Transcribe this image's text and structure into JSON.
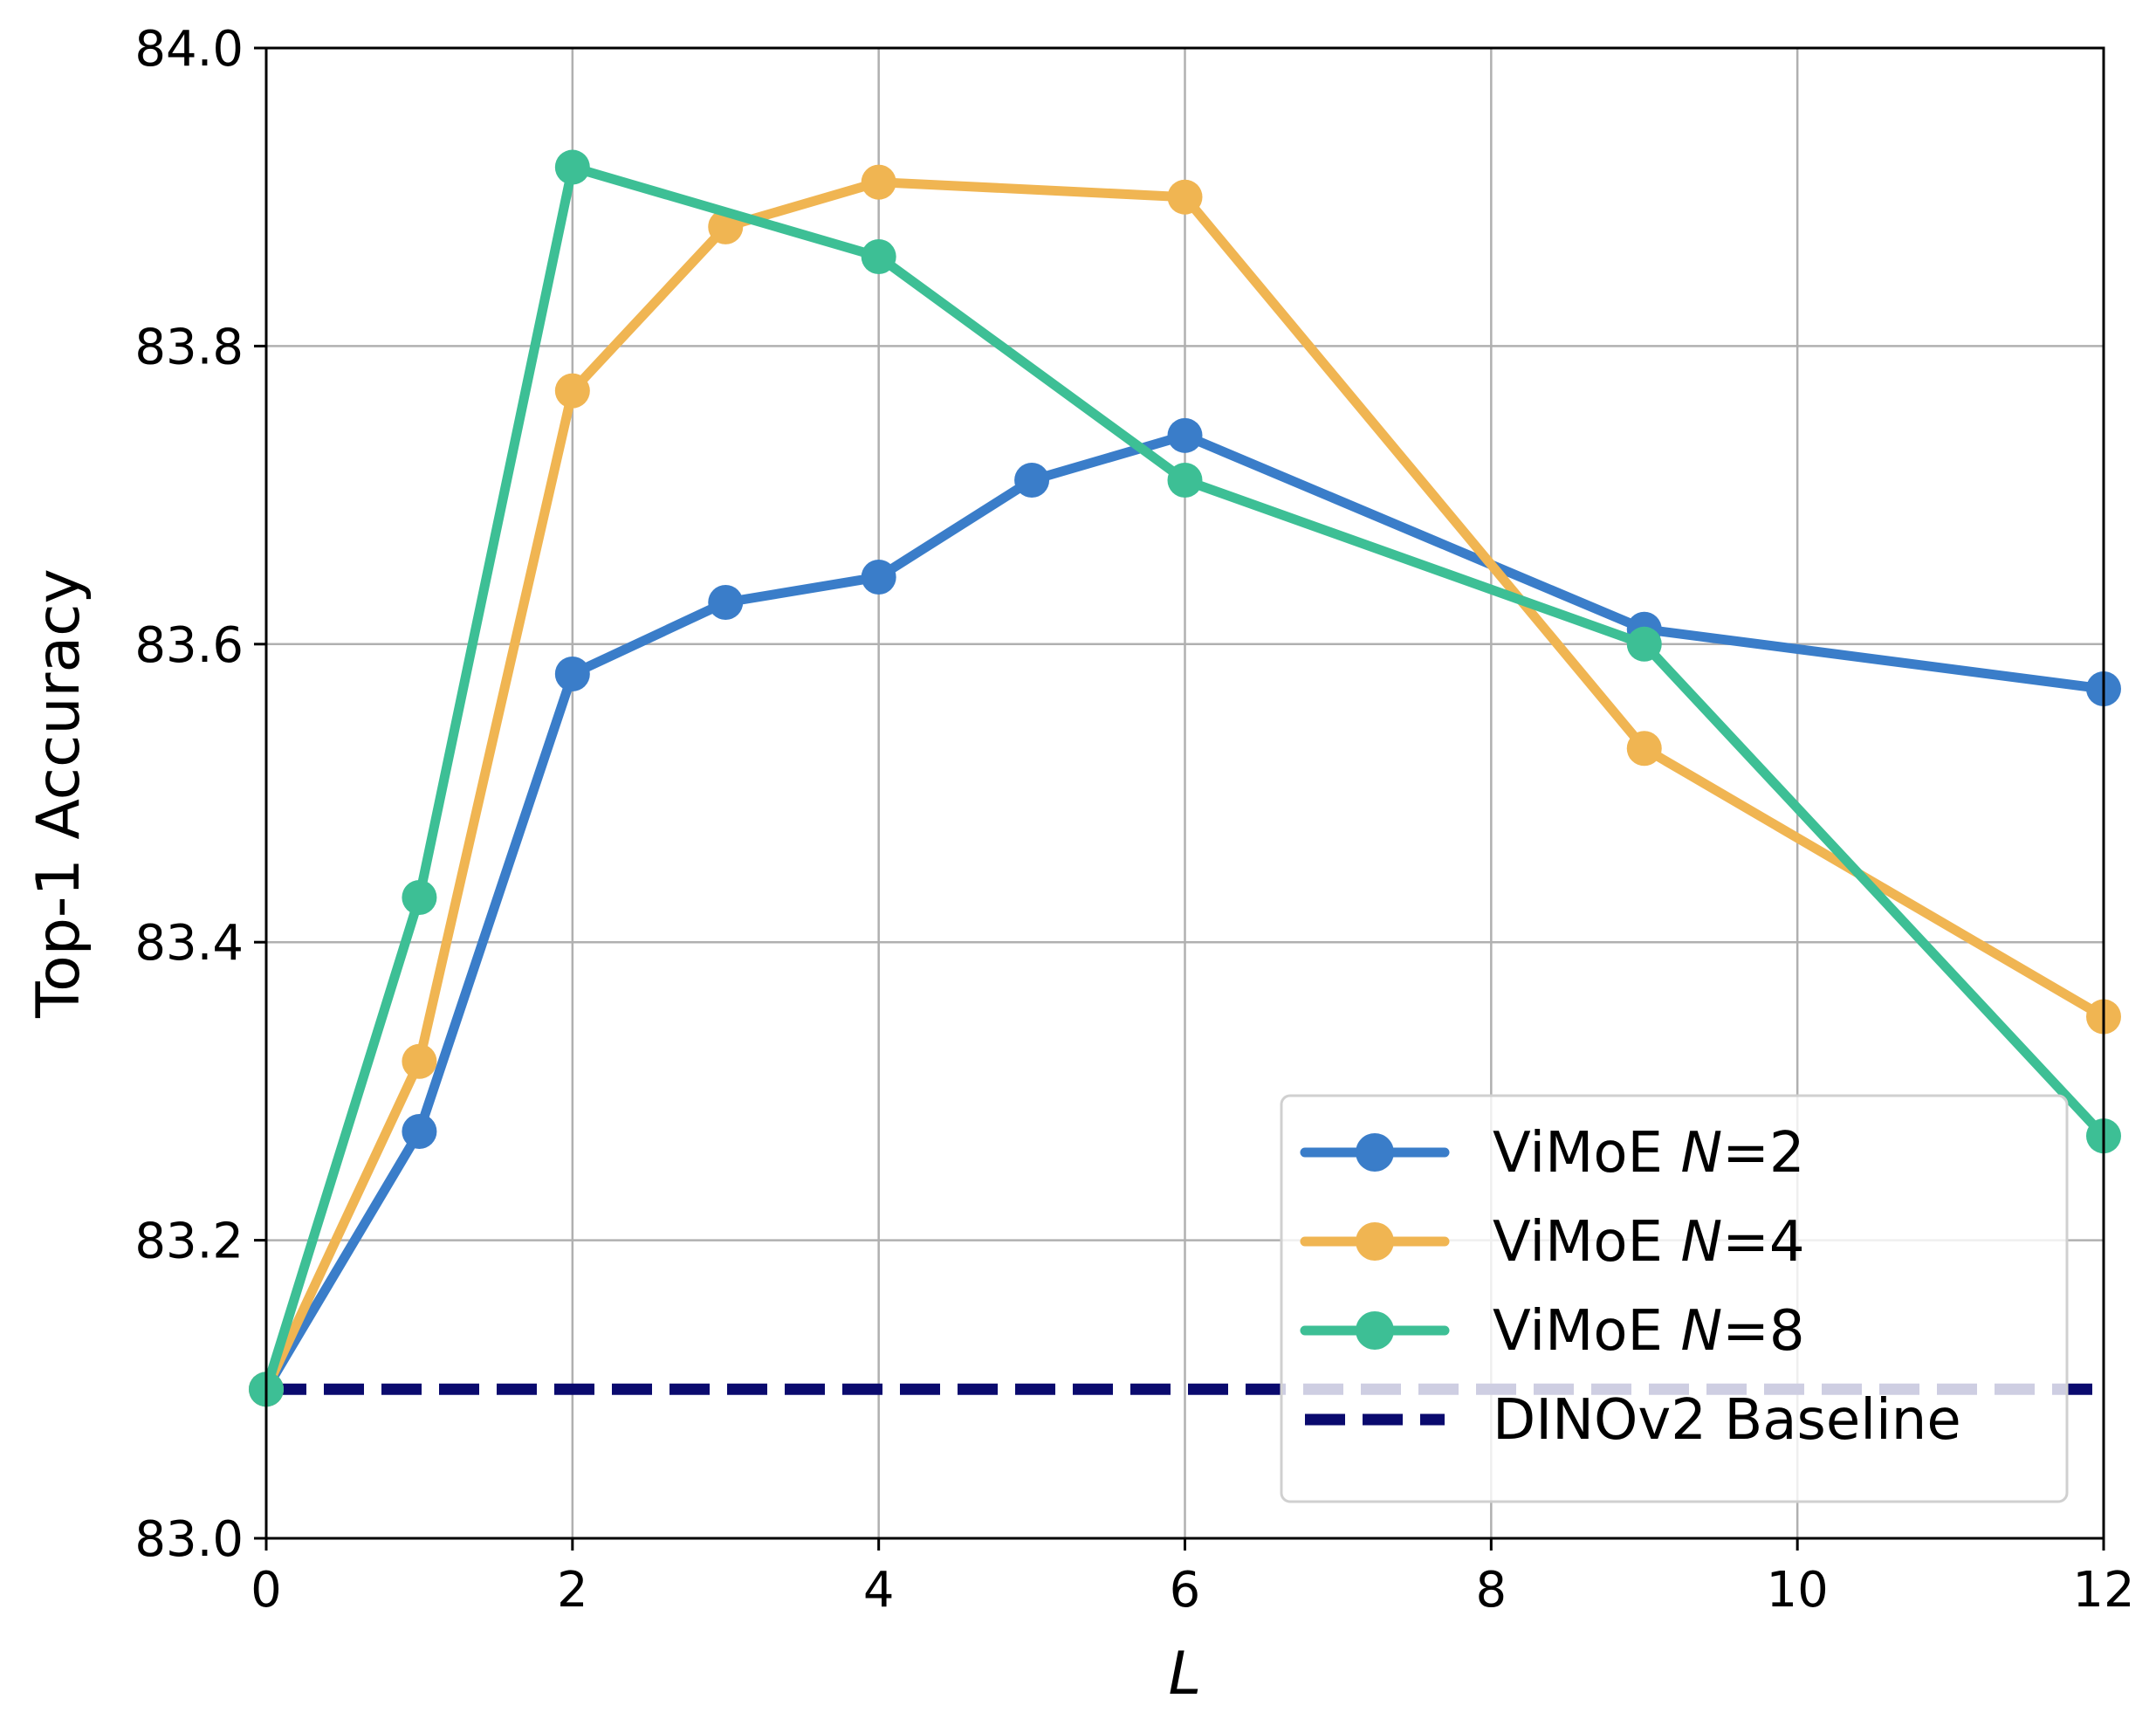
{
  "chart_data": {
    "type": "line",
    "xlabel": "L",
    "ylabel": "Top-1 Accuracy",
    "xlim": [
      0,
      12
    ],
    "ylim": [
      83.0,
      84.0
    ],
    "xticks": [
      0,
      2,
      4,
      6,
      8,
      10,
      12
    ],
    "yticks": [
      83.0,
      83.2,
      83.4,
      83.6,
      83.8,
      84.0
    ],
    "xtick_labels": [
      "0",
      "2",
      "4",
      "6",
      "8",
      "10",
      "12"
    ],
    "ytick_labels": [
      "83.0",
      "83.2",
      "83.4",
      "83.6",
      "83.8",
      "84.0"
    ],
    "grid": true,
    "legend_position": "lower-right",
    "series": [
      {
        "name": "ViMoE N=2",
        "legend_prefix": "ViMoE ",
        "legend_var": "N",
        "legend_suffix": "=2",
        "color": "#3a7dc9",
        "x": [
          0,
          1,
          2,
          3,
          4,
          5,
          6,
          9,
          12
        ],
        "y": [
          83.1,
          83.273,
          83.58,
          83.628,
          83.645,
          83.71,
          83.74,
          83.61,
          83.57
        ]
      },
      {
        "name": "ViMoE N=4",
        "legend_prefix": "ViMoE ",
        "legend_var": "N",
        "legend_suffix": "=4",
        "color": "#f0b552",
        "x": [
          0,
          1,
          2,
          3,
          4,
          6,
          9,
          12
        ],
        "y": [
          83.1,
          83.32,
          83.77,
          83.88,
          83.91,
          83.9,
          83.53,
          83.35
        ]
      },
      {
        "name": "ViMoE N=8",
        "legend_prefix": "ViMoE ",
        "legend_var": "N",
        "legend_suffix": "=8",
        "color": "#3dbf95",
        "x": [
          0,
          1,
          2,
          4,
          6,
          9,
          12
        ],
        "y": [
          83.1,
          83.43,
          83.92,
          83.86,
          83.71,
          83.6,
          83.27
        ]
      }
    ],
    "baseline": {
      "name": "DINOv2 Baseline",
      "value": 83.1,
      "color": "#0a0a6e",
      "style": "dashed"
    }
  }
}
